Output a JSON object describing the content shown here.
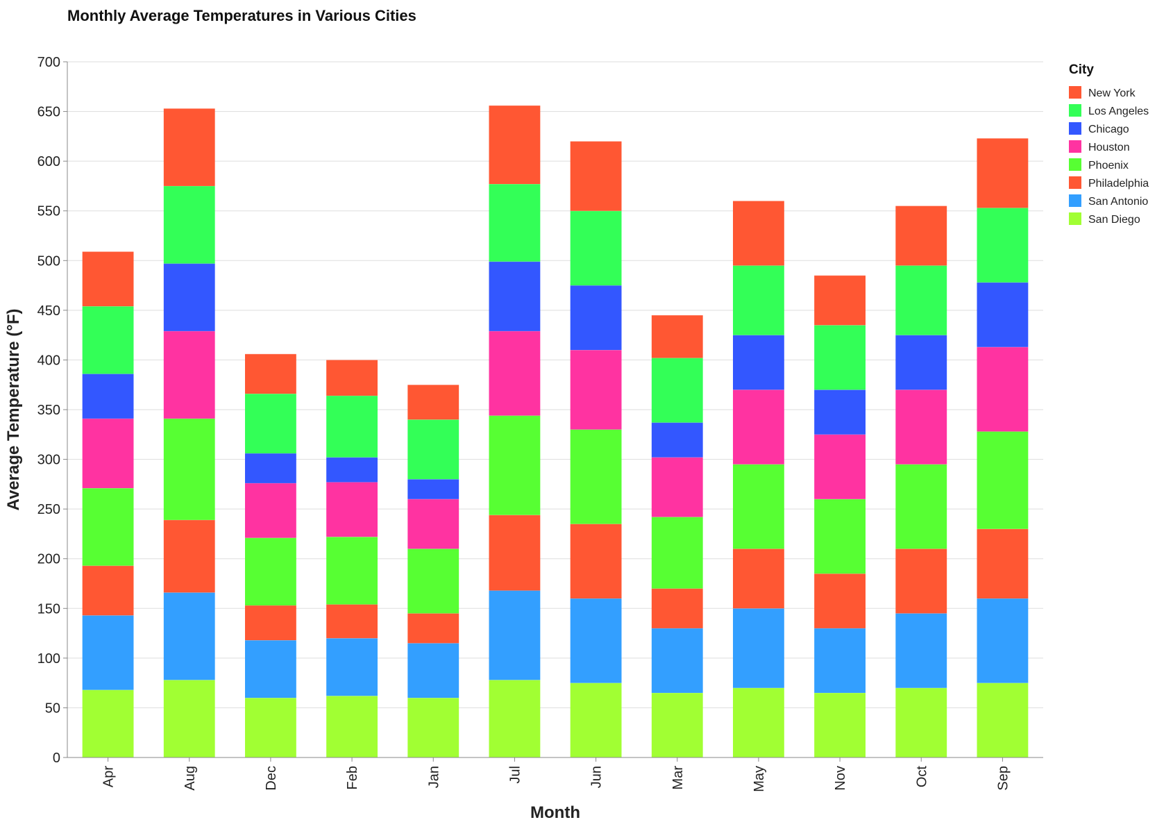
{
  "chart_data": {
    "type": "bar",
    "stacked": true,
    "title": "Monthly Average Temperatures in Various Cities",
    "xlabel": "Month",
    "ylabel": "Average Temperature (°F)",
    "ylim": [
      0,
      700
    ],
    "yticks": [
      0,
      50,
      100,
      150,
      200,
      250,
      300,
      350,
      400,
      450,
      500,
      550,
      600,
      650,
      700
    ],
    "grid": true,
    "legend_title": "City",
    "legend_position": "top-right",
    "categories": [
      "Apr",
      "Aug",
      "Dec",
      "Feb",
      "Jan",
      "Jul",
      "Jun",
      "Mar",
      "May",
      "Nov",
      "Oct",
      "Sep"
    ],
    "series": [
      {
        "name": "New York",
        "color": "#ff5733",
        "values": [
          55,
          78,
          40,
          36,
          35,
          79,
          70,
          43,
          65,
          50,
          60,
          70
        ]
      },
      {
        "name": "Los Angeles",
        "color": "#33ff57",
        "values": [
          68,
          78,
          60,
          62,
          60,
          78,
          75,
          65,
          70,
          65,
          70,
          75
        ]
      },
      {
        "name": "Chicago",
        "color": "#3357ff",
        "values": [
          45,
          68,
          30,
          25,
          20,
          70,
          65,
          35,
          55,
          45,
          55,
          65
        ]
      },
      {
        "name": "Houston",
        "color": "#ff33a1",
        "values": [
          70,
          88,
          55,
          55,
          50,
          85,
          80,
          60,
          75,
          65,
          75,
          85
        ]
      },
      {
        "name": "Phoenix",
        "color": "#57ff33",
        "values": [
          78,
          102,
          68,
          68,
          65,
          100,
          95,
          72,
          85,
          75,
          85,
          98
        ]
      },
      {
        "name": "Philadelphia",
        "color": "#ff5733",
        "values": [
          50,
          73,
          35,
          34,
          30,
          76,
          75,
          40,
          60,
          55,
          65,
          70
        ]
      },
      {
        "name": "San Antonio",
        "color": "#339fff",
        "values": [
          75,
          88,
          58,
          58,
          55,
          90,
          85,
          65,
          80,
          65,
          75,
          85
        ]
      },
      {
        "name": "San Diego",
        "color": "#a1ff33",
        "values": [
          68,
          78,
          60,
          62,
          60,
          78,
          75,
          65,
          70,
          65,
          70,
          75
        ]
      }
    ]
  }
}
